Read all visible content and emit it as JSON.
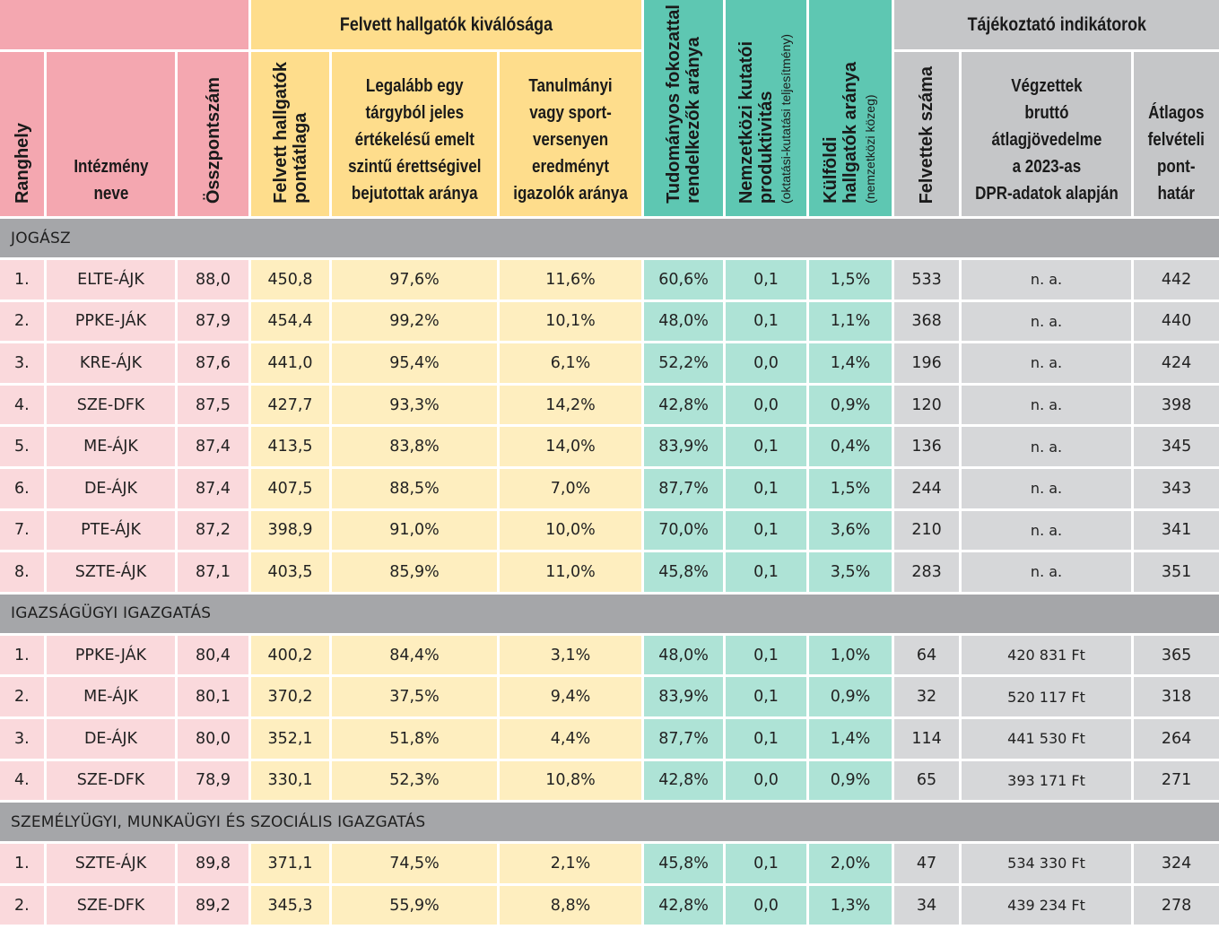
{
  "groups": {
    "excellence": "Felvett hallgatók kiválósága",
    "indicative": "Tájékoztató indikátorok"
  },
  "columns": {
    "rank": "Ranghely",
    "institution": [
      "Intézmény",
      "neve"
    ],
    "total": "Összpontszám",
    "avg_points": [
      "Felvett hallgatók",
      "pontátlaga"
    ],
    "excellent_exam": [
      "Legalább egy",
      "tárgyból jeles",
      "értékelésű emelt",
      "szintű érettségivel",
      "bejutottak aránya"
    ],
    "competition": [
      "Tanulmányi",
      "vagy sport-",
      "versenyen",
      "eredményt",
      "igazolók aránya"
    ],
    "phd_ratio": [
      "Tudományos fokozattal",
      "rendelkezők aránya"
    ],
    "intl_research": [
      "Nemzetközi kutatói",
      "produktivitás",
      "(oktatási-kutatási teljesítmény)"
    ],
    "foreign_students": [
      "Külföldi",
      "hallgatók aránya",
      "(nemzetközi közeg)"
    ],
    "admitted": "Felvettek száma",
    "income": [
      "Végzettek",
      "bruttó",
      "átlagjövedelme",
      "a 2023-as",
      "DPR-adatok alapján"
    ],
    "cutoff": [
      "Átlagos",
      "felvételi",
      "pont-",
      "határ"
    ]
  },
  "sections": [
    {
      "title": "JOGÁSZ",
      "rows": [
        [
          "1.",
          "ELTE-ÁJK",
          "88,0",
          "450,8",
          "97,6%",
          "11,6%",
          "60,6%",
          "0,1",
          "1,5%",
          "533",
          "n. a.",
          "442"
        ],
        [
          "2.",
          "PPKE-JÁK",
          "87,9",
          "454,4",
          "99,2%",
          "10,1%",
          "48,0%",
          "0,1",
          "1,1%",
          "368",
          "n. a.",
          "440"
        ],
        [
          "3.",
          "KRE-ÁJK",
          "87,6",
          "441,0",
          "95,4%",
          "6,1%",
          "52,2%",
          "0,0",
          "1,4%",
          "196",
          "n. a.",
          "424"
        ],
        [
          "4.",
          "SZE-DFK",
          "87,5",
          "427,7",
          "93,3%",
          "14,2%",
          "42,8%",
          "0,0",
          "0,9%",
          "120",
          "n. a.",
          "398"
        ],
        [
          "5.",
          "ME-ÁJK",
          "87,4",
          "413,5",
          "83,8%",
          "14,0%",
          "83,9%",
          "0,1",
          "0,4%",
          "136",
          "n. a.",
          "345"
        ],
        [
          "6.",
          "DE-ÁJK",
          "87,4",
          "407,5",
          "88,5%",
          "7,0%",
          "87,7%",
          "0,1",
          "1,5%",
          "244",
          "n. a.",
          "343"
        ],
        [
          "7.",
          "PTE-ÁJK",
          "87,2",
          "398,9",
          "91,0%",
          "10,0%",
          "70,0%",
          "0,1",
          "3,6%",
          "210",
          "n. a.",
          "341"
        ],
        [
          "8.",
          "SZTE-ÁJK",
          "87,1",
          "403,5",
          "85,9%",
          "11,0%",
          "45,8%",
          "0,1",
          "3,5%",
          "283",
          "n. a.",
          "351"
        ]
      ]
    },
    {
      "title": "IGAZSÁGÜGYI IGAZGATÁS",
      "rows": [
        [
          "1.",
          "PPKE-JÁK",
          "80,4",
          "400,2",
          "84,4%",
          "3,1%",
          "48,0%",
          "0,1",
          "1,0%",
          "64",
          "420 831 Ft",
          "365"
        ],
        [
          "2.",
          "ME-ÁJK",
          "80,1",
          "370,2",
          "37,5%",
          "9,4%",
          "83,9%",
          "0,1",
          "0,9%",
          "32",
          "520 117 Ft",
          "318"
        ],
        [
          "3.",
          "DE-ÁJK",
          "80,0",
          "352,1",
          "51,8%",
          "4,4%",
          "87,7%",
          "0,1",
          "1,4%",
          "114",
          "441 530 Ft",
          "264"
        ],
        [
          "4.",
          "SZE-DFK",
          "78,9",
          "330,1",
          "52,3%",
          "10,8%",
          "42,8%",
          "0,0",
          "0,9%",
          "65",
          "393 171 Ft",
          "271"
        ]
      ]
    },
    {
      "title": "SZEMÉLYÜGYI, MUNKAÜGYI ÉS SZOCIÁLIS IGAZGATÁS",
      "rows": [
        [
          "1.",
          "SZTE-ÁJK",
          "89,8",
          "371,1",
          "74,5%",
          "2,1%",
          "45,8%",
          "0,1",
          "2,0%",
          "47",
          "534 330 Ft",
          "324"
        ],
        [
          "2.",
          "SZE-DFK",
          "89,2",
          "345,3",
          "55,9%",
          "8,8%",
          "42,8%",
          "0,0",
          "1,3%",
          "34",
          "439 234 Ft",
          "278"
        ]
      ]
    }
  ]
}
